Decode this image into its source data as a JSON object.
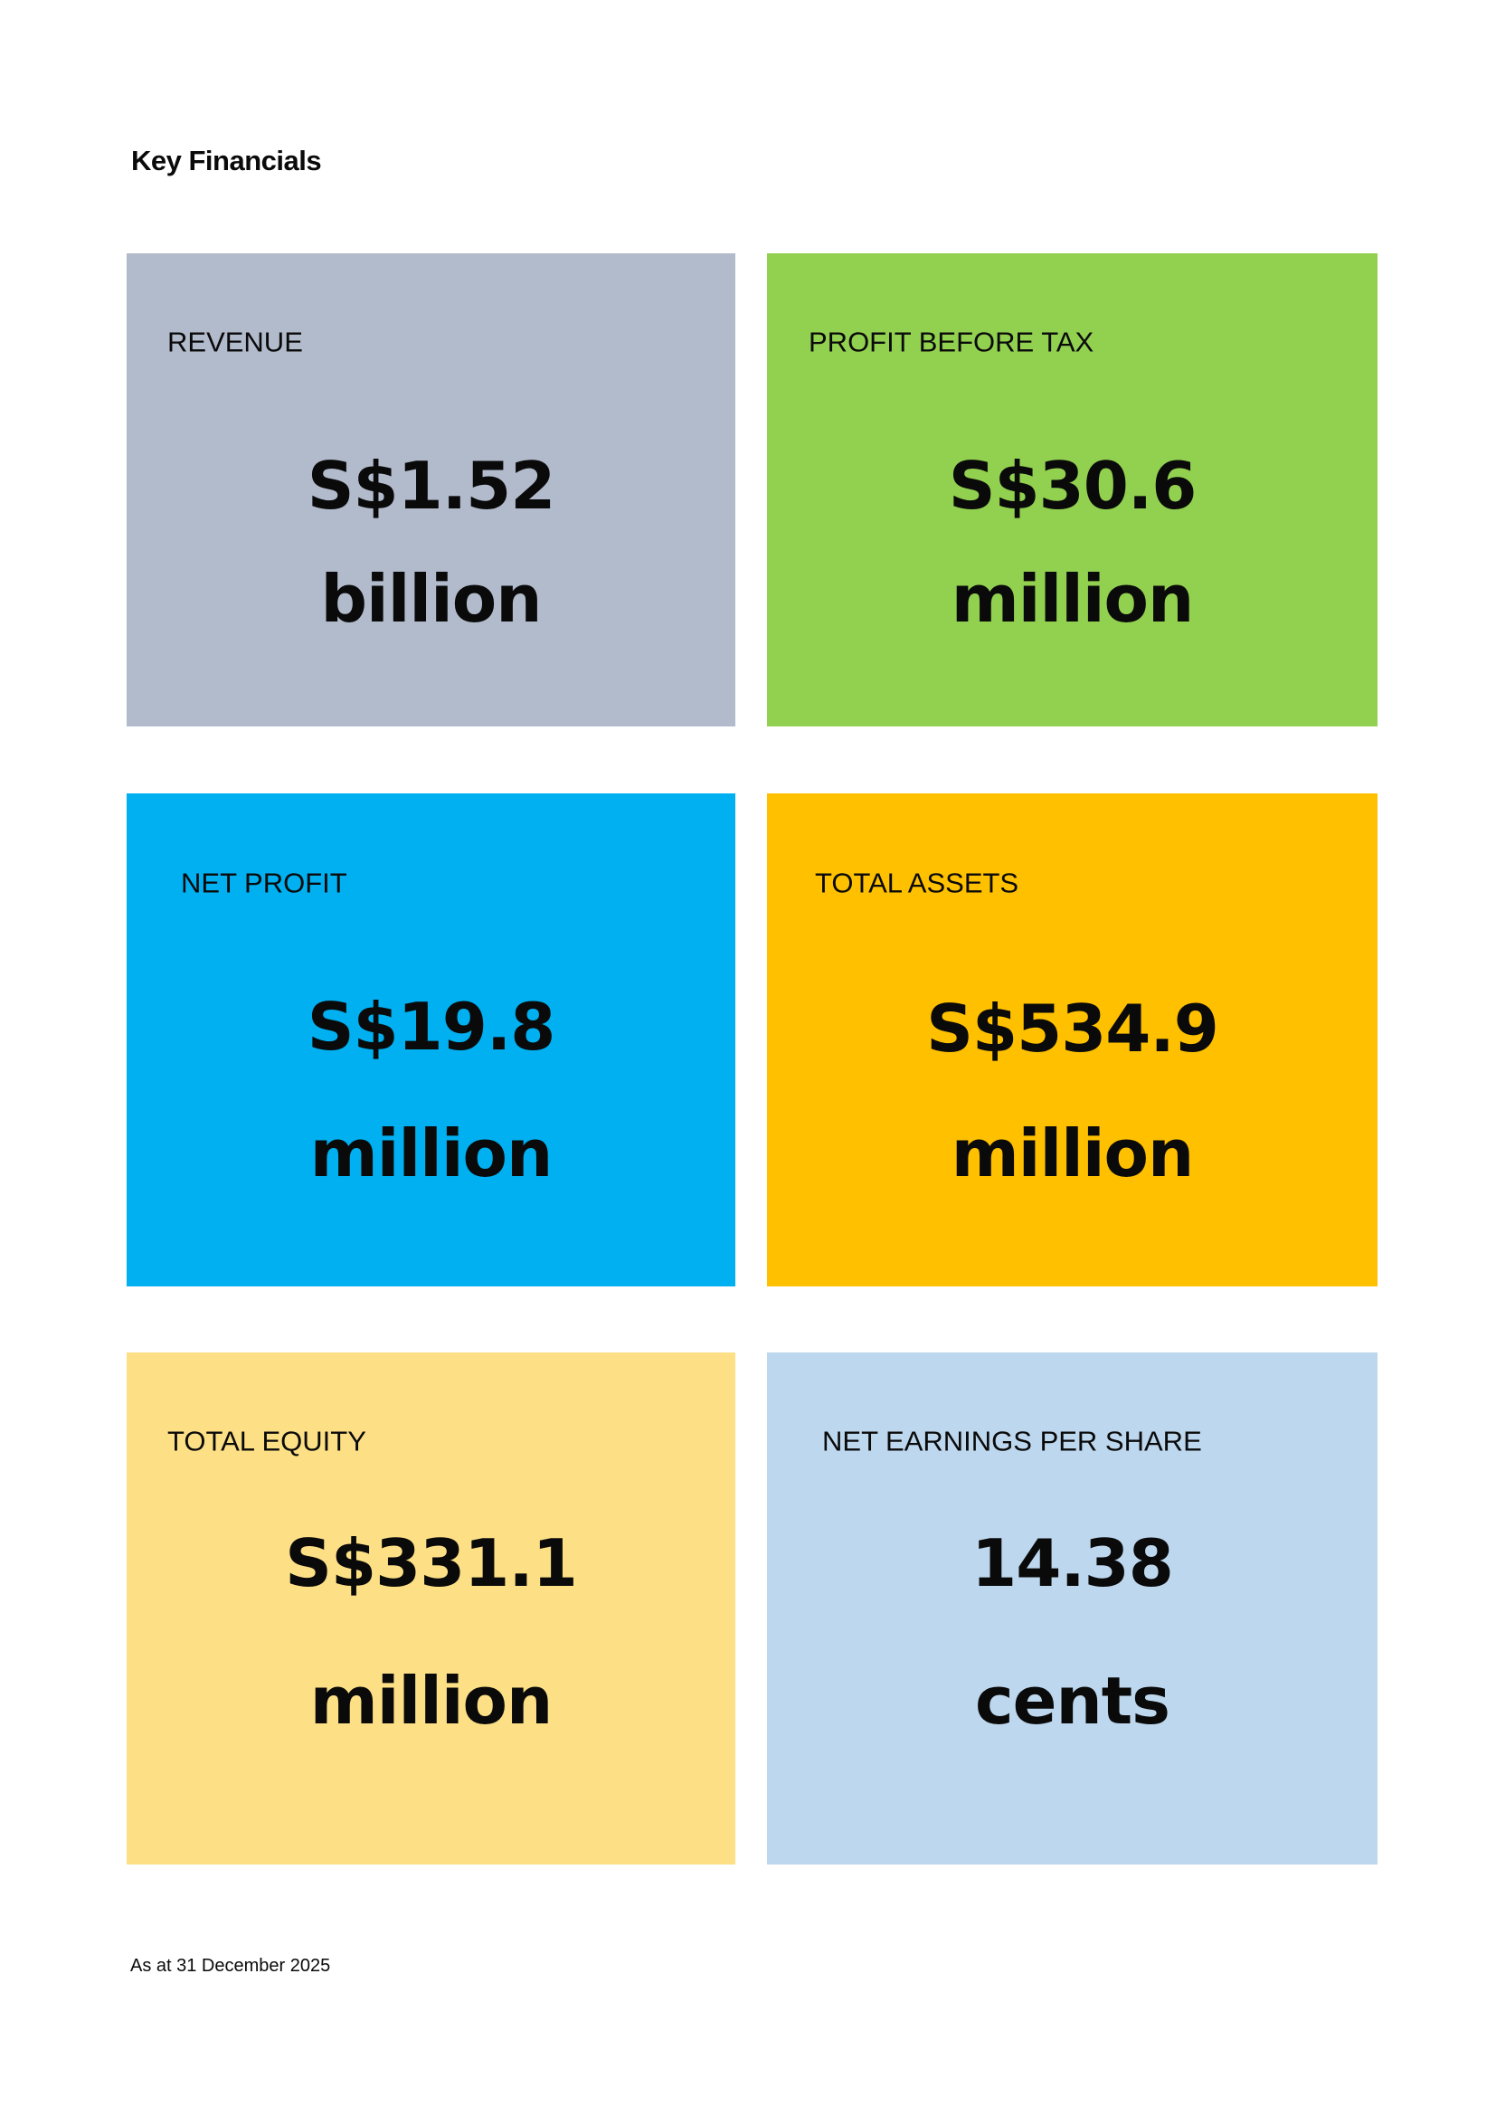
{
  "title": "Key Financials",
  "cards": [
    {
      "label": "REVENUE",
      "value": "S$1.52",
      "unit": "billion",
      "color": "#b2bbcc"
    },
    {
      "label": "PROFIT BEFORE TAX",
      "value": "S$30.6",
      "unit": "million",
      "color": "#92d050"
    },
    {
      "label": "NET PROFIT",
      "value": "S$19.8",
      "unit": "million",
      "color": "#00b0f0"
    },
    {
      "label": "TOTAL ASSETS",
      "value": "S$534.9",
      "unit": "million",
      "color": "#ffc000"
    },
    {
      "label": "TOTAL EQUITY",
      "value": "S$331.1",
      "unit": "million",
      "color": "#fde086"
    },
    {
      "label": "NET EARNINGS PER SHARE",
      "value": "14.38",
      "unit": "cents",
      "color": "#bdd7ee"
    }
  ],
  "footer": "As at 31 December 2025"
}
